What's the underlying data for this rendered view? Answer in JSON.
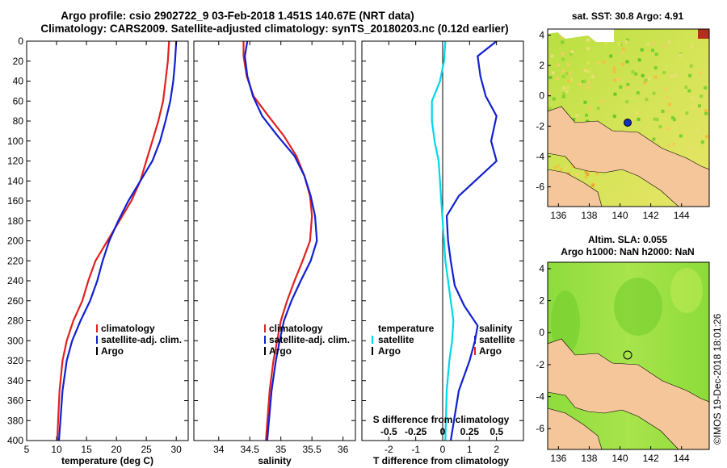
{
  "header": {
    "line1": "Argo profile: csio 2902722_9 03-Feb-2018 1.451S 140.67E (NRT data)",
    "line2": "Climatology: CARS2009. Satellite-adjusted climatology: synTS_20180203.nc (0.12d earlier)"
  },
  "chart_data": [
    {
      "type": "line",
      "id": "temperature",
      "xlabel": "temperature (deg C)",
      "xlim": [
        5,
        32
      ],
      "ylim": [
        400,
        0
      ],
      "xticks": [
        "5",
        "10",
        "15",
        "20",
        "25",
        "30"
      ],
      "yticks": [
        "0",
        "20",
        "40",
        "60",
        "80",
        "100",
        "120",
        "140",
        "160",
        "180",
        "200",
        "220",
        "240",
        "260",
        "280",
        "300",
        "320",
        "340",
        "360",
        "380",
        "400"
      ],
      "series": [
        {
          "name": "climatology",
          "color": "#e02020",
          "x": [
            28.8,
            28.6,
            28.2,
            27.8,
            27.0,
            26.0,
            25.0,
            24.0,
            22.5,
            20.5,
            18.5,
            16.5,
            15.3,
            14.3,
            12.8,
            11.7,
            11.0,
            10.5,
            10.1
          ],
          "y": [
            0,
            20,
            40,
            60,
            80,
            100,
            120,
            140,
            160,
            180,
            200,
            220,
            240,
            260,
            280,
            300,
            320,
            350,
            400
          ]
        },
        {
          "name": "satellite-adj. clim.",
          "color": "#1020d0",
          "x": [
            30.0,
            29.8,
            29.5,
            29.0,
            28.2,
            27.3,
            26.0,
            24.0,
            22.0,
            20.3,
            18.8,
            17.7,
            16.8,
            15.6,
            14.0,
            12.6,
            11.7,
            11.0,
            10.4
          ],
          "y": [
            0,
            20,
            40,
            60,
            80,
            100,
            120,
            140,
            160,
            180,
            200,
            220,
            240,
            260,
            280,
            300,
            320,
            350,
            400
          ]
        }
      ],
      "legend": [
        "climatology",
        "satellite-adj. clim.",
        "Argo"
      ]
    },
    {
      "type": "line",
      "id": "salinity",
      "xlabel": "salinity",
      "xlim": [
        33.6,
        36.2
      ],
      "ylim": [
        400,
        0
      ],
      "xticks": [
        "34",
        "34.5",
        "35",
        "35.5",
        "36"
      ],
      "series": [
        {
          "name": "climatology",
          "color": "#e02020",
          "x": [
            34.4,
            34.4,
            34.45,
            34.56,
            34.8,
            35.05,
            35.25,
            35.38,
            35.47,
            35.5,
            35.47,
            35.35,
            35.22,
            35.1,
            35.0,
            34.94,
            34.88,
            34.82,
            34.76
          ],
          "y": [
            0,
            15,
            35,
            55,
            75,
            95,
            115,
            135,
            155,
            175,
            200,
            220,
            240,
            260,
            280,
            300,
            320,
            350,
            400
          ]
        },
        {
          "name": "satellite-adj. clim.",
          "color": "#1020d0",
          "x": [
            34.46,
            34.42,
            34.46,
            34.55,
            34.7,
            34.95,
            35.22,
            35.38,
            35.48,
            35.55,
            35.58,
            35.48,
            35.32,
            35.17,
            35.05,
            34.98,
            34.92,
            34.85,
            34.78
          ],
          "y": [
            0,
            15,
            35,
            55,
            75,
            95,
            115,
            135,
            155,
            175,
            200,
            220,
            240,
            260,
            280,
            300,
            320,
            350,
            400
          ]
        }
      ],
      "legend": [
        "climatology",
        "satellite-adj. clim.",
        "Argo"
      ]
    },
    {
      "type": "line",
      "id": "difference",
      "xlabel": "T difference from climatology",
      "xlabel_top": "S difference from climatology",
      "xlim": [
        -3,
        3
      ],
      "ylim": [
        400,
        0
      ],
      "xticks": [
        "-2",
        "-1",
        "0",
        "1",
        "2"
      ],
      "xticks_s": [
        "-0.5",
        "-0.25",
        "0",
        "0.25",
        "0.5"
      ],
      "series": [
        {
          "name": "temperature satellite",
          "color": "#00d8e8",
          "x": [
            0.1,
            0.05,
            -0.1,
            -0.4,
            -0.4,
            -0.3,
            -0.15,
            -0.1,
            -0.05,
            0.0,
            0.05,
            0.1,
            0.2,
            0.3,
            0.4,
            0.35,
            0.25,
            0.15,
            0.1
          ],
          "y": [
            0,
            20,
            40,
            60,
            80,
            100,
            120,
            140,
            160,
            180,
            200,
            220,
            240,
            260,
            280,
            300,
            320,
            350,
            400
          ]
        },
        {
          "name": "salinity satellite",
          "color": "#1020d0",
          "x": [
            2.0,
            1.3,
            1.4,
            1.6,
            2.0,
            1.8,
            2.0,
            1.2,
            0.6,
            0.15,
            0.2,
            0.3,
            0.45,
            0.8,
            1.3,
            1.2,
            1.0,
            0.6,
            0.3
          ],
          "y": [
            0,
            15,
            35,
            55,
            75,
            100,
            120,
            140,
            155,
            175,
            200,
            220,
            245,
            265,
            285,
            300,
            320,
            350,
            400
          ]
        }
      ],
      "legend_left": {
        "title": "temperature",
        "items": [
          "satellite",
          "Argo"
        ]
      },
      "legend_right": {
        "title": "salinity",
        "items": [
          "satellite",
          "Argo"
        ]
      }
    }
  ],
  "map_top": {
    "title": "sat. SST: 30.8 Argo: 4.91",
    "xticks": [
      "136",
      "138",
      "140",
      "142",
      "144"
    ],
    "yticks": [
      "4",
      "2",
      "0",
      "-2",
      "-4",
      "-6"
    ],
    "colors": {
      "sea": "#c8e050",
      "land": "#f5c69a",
      "mask": "#ffffff"
    }
  },
  "map_bottom": {
    "title1": "Altim. SLA: 0.055",
    "title2": "Argo h1000: NaN h2000: NaN",
    "xticks": [
      "136",
      "138",
      "140",
      "142",
      "144"
    ],
    "yticks": [
      "4",
      "2",
      "0",
      "-2",
      "-4",
      "-6"
    ],
    "colors": {
      "sea": "#9ee040",
      "land": "#f5c69a"
    }
  },
  "copyright": "©IMOS 19-Dec-2018 18:01:26"
}
